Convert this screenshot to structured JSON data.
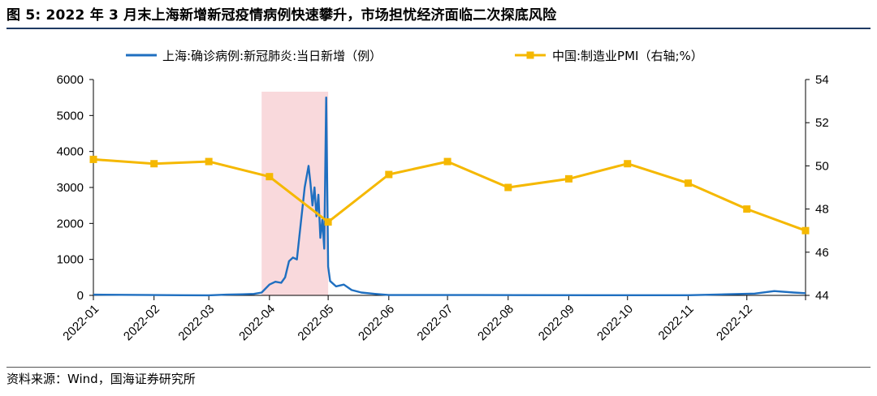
{
  "figure": {
    "title": "图 5: 2022 年 3 月末上海新增新冠疫情病例快速攀升，市场担忧经济面临二次探底风险",
    "source": "资料来源：Wind，国海证券研究所"
  },
  "colors": {
    "cases_line": "#1f6fc0",
    "pmi_line": "#f5b800",
    "highlight": "#f9d9dc",
    "axis": "#000000",
    "title_rule": "#1f3a63"
  },
  "chart_data": {
    "type": "line",
    "x_axis": {
      "type": "date",
      "range": [
        "2022-01-01",
        "2022-12-31"
      ],
      "tick_labels": [
        "2022-01",
        "2022-02",
        "2022-03",
        "2022-04",
        "2022-05",
        "2022-06",
        "2022-07",
        "2022-08",
        "2022-09",
        "2022-10",
        "2022-11",
        "2022-12"
      ],
      "tick_dates": [
        "2022-01-01",
        "2022-02-01",
        "2022-03-01",
        "2022-04-01",
        "2022-05-01",
        "2022-06-01",
        "2022-07-01",
        "2022-08-01",
        "2022-09-01",
        "2022-10-01",
        "2022-11-01",
        "2022-12-01"
      ]
    },
    "y_left": {
      "range": [
        0,
        6000
      ],
      "ticks": [
        0,
        1000,
        2000,
        3000,
        4000,
        5000,
        6000
      ]
    },
    "y_right": {
      "range": [
        44,
        54
      ],
      "ticks": [
        44,
        46,
        48,
        50,
        52,
        54
      ]
    },
    "grid": false,
    "legend_position": "top",
    "highlight_band": {
      "from": "2022-03-28",
      "to": "2022-05-01"
    },
    "series": [
      {
        "name": "上海:确诊病例:新冠肺炎:当日新增（例）",
        "axis": "left",
        "style": "line",
        "points": [
          [
            "2022-01-01",
            20
          ],
          [
            "2022-01-15",
            15
          ],
          [
            "2022-02-01",
            10
          ],
          [
            "2022-02-15",
            5
          ],
          [
            "2022-03-01",
            3
          ],
          [
            "2022-03-10",
            20
          ],
          [
            "2022-03-18",
            30
          ],
          [
            "2022-03-24",
            40
          ],
          [
            "2022-03-28",
            80
          ],
          [
            "2022-04-01",
            300
          ],
          [
            "2022-04-04",
            380
          ],
          [
            "2022-04-07",
            350
          ],
          [
            "2022-04-09",
            500
          ],
          [
            "2022-04-11",
            950
          ],
          [
            "2022-04-13",
            1050
          ],
          [
            "2022-04-15",
            1000
          ],
          [
            "2022-04-17",
            2000
          ],
          [
            "2022-04-19",
            3000
          ],
          [
            "2022-04-21",
            3600
          ],
          [
            "2022-04-22",
            3100
          ],
          [
            "2022-04-23",
            2500
          ],
          [
            "2022-04-24",
            3000
          ],
          [
            "2022-04-25",
            2200
          ],
          [
            "2022-04-26",
            2800
          ],
          [
            "2022-04-27",
            1600
          ],
          [
            "2022-04-28",
            2100
          ],
          [
            "2022-04-29",
            1300
          ],
          [
            "2022-04-30",
            5500
          ],
          [
            "2022-05-01",
            800
          ],
          [
            "2022-05-02",
            400
          ],
          [
            "2022-05-05",
            250
          ],
          [
            "2022-05-09",
            300
          ],
          [
            "2022-05-13",
            150
          ],
          [
            "2022-05-18",
            80
          ],
          [
            "2022-05-25",
            40
          ],
          [
            "2022-06-01",
            10
          ],
          [
            "2022-07-15",
            10
          ],
          [
            "2022-09-15",
            5
          ],
          [
            "2022-11-01",
            5
          ],
          [
            "2022-11-20",
            30
          ],
          [
            "2022-12-05",
            50
          ],
          [
            "2022-12-15",
            120
          ],
          [
            "2022-12-25",
            80
          ],
          [
            "2022-12-31",
            60
          ]
        ]
      },
      {
        "name": "中国:制造业PMI（右轴;%）",
        "axis": "right",
        "style": "line-marker",
        "points": [
          [
            "2022-01-01",
            50.3
          ],
          [
            "2022-02-01",
            50.1
          ],
          [
            "2022-03-01",
            50.2
          ],
          [
            "2022-04-01",
            49.5
          ],
          [
            "2022-05-01",
            47.4
          ],
          [
            "2022-06-01",
            49.6
          ],
          [
            "2022-07-01",
            50.2
          ],
          [
            "2022-08-01",
            49.0
          ],
          [
            "2022-09-01",
            49.4
          ],
          [
            "2022-10-01",
            50.1
          ],
          [
            "2022-11-01",
            49.2
          ],
          [
            "2022-12-01",
            48.0
          ],
          [
            "2022-12-31",
            47.0
          ]
        ]
      }
    ]
  }
}
